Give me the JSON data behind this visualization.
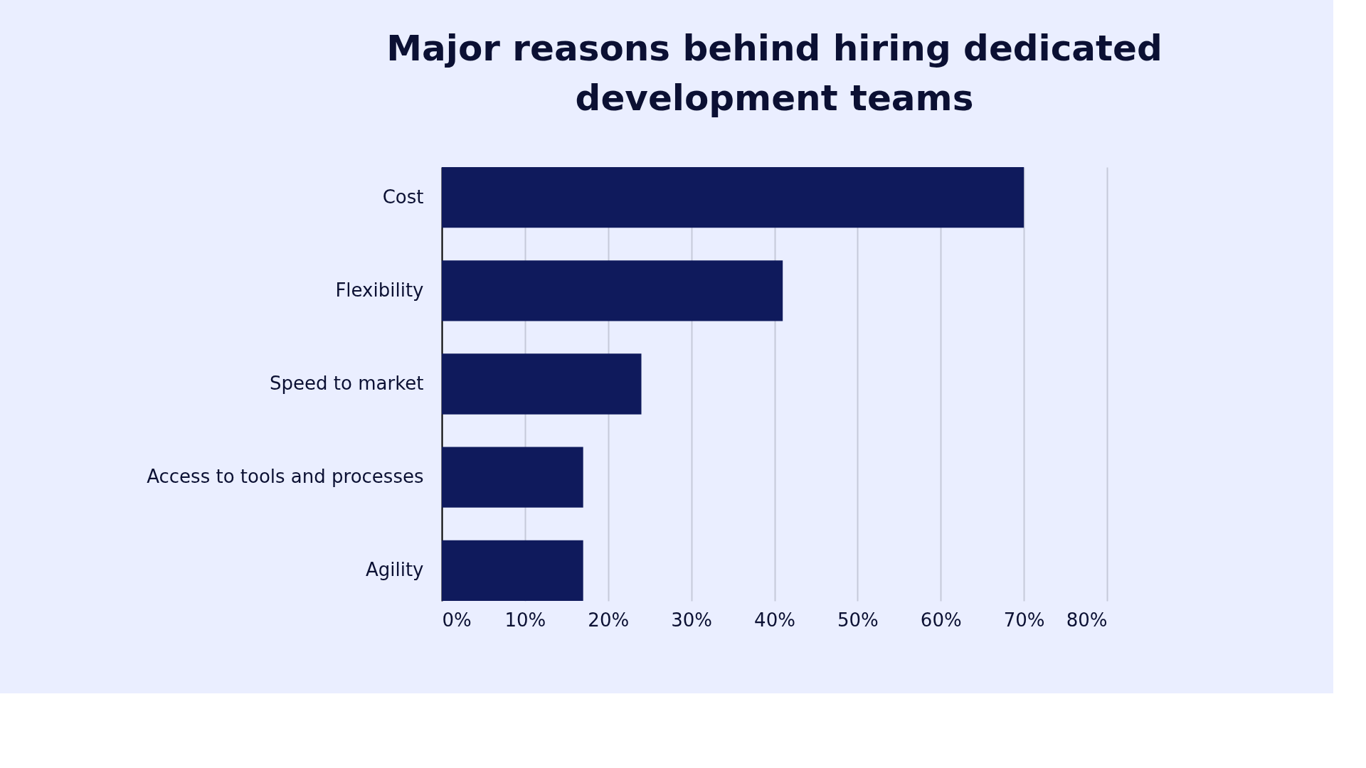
{
  "chart_data": {
    "type": "bar",
    "orientation": "horizontal",
    "title": "Major reasons behind hiring dedicated development teams",
    "categories": [
      "Cost",
      "Flexibility",
      "Speed to market",
      "Access to tools and processes",
      "Agility"
    ],
    "values": [
      70,
      41,
      24,
      17,
      17
    ],
    "color": "#0f1a5c",
    "xlim": [
      0,
      80
    ],
    "xticks": [
      {
        "value": 0,
        "label": "0%"
      },
      {
        "value": 10,
        "label": "10%"
      },
      {
        "value": 20,
        "label": "20%"
      },
      {
        "value": 30,
        "label": "30%"
      },
      {
        "value": 40,
        "label": "40%"
      },
      {
        "value": 50,
        "label": "50%"
      },
      {
        "value": 60,
        "label": "60%"
      },
      {
        "value": 70,
        "label": "70%"
      },
      {
        "value": 80,
        "label": "80%"
      }
    ],
    "grid": "x"
  }
}
